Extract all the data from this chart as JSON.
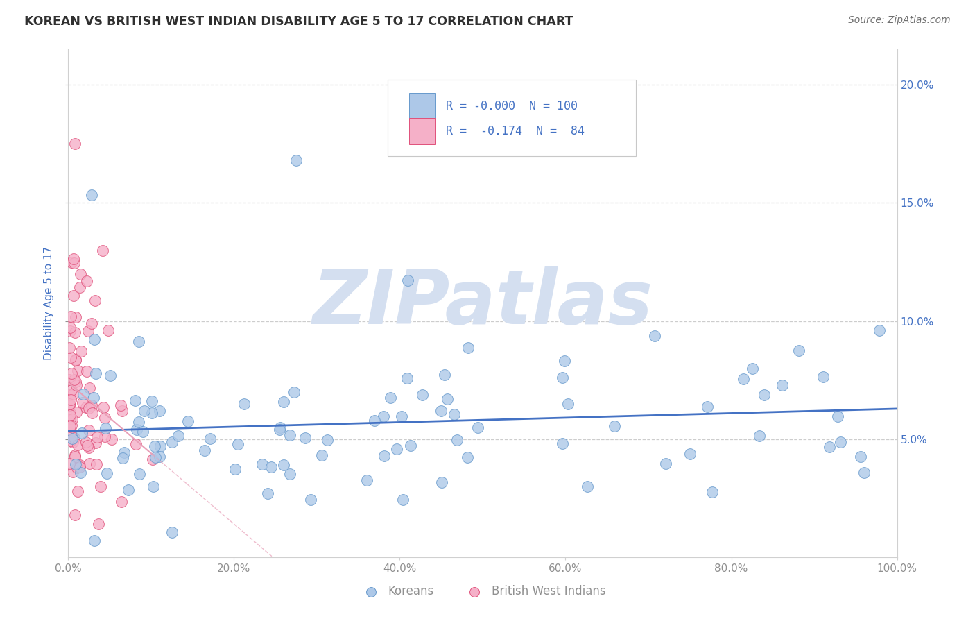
{
  "title": "KOREAN VS BRITISH WEST INDIAN DISABILITY AGE 5 TO 17 CORRELATION CHART",
  "source_text": "Source: ZipAtlas.com",
  "ylabel": "Disability Age 5 to 17",
  "xlim": [
    0.0,
    1.0
  ],
  "ylim": [
    0.0,
    0.215
  ],
  "yticks": [
    0.05,
    0.1,
    0.15,
    0.2
  ],
  "ytick_labels": [
    "5.0%",
    "10.0%",
    "15.0%",
    "20.0%"
  ],
  "xticks": [
    0.0,
    0.2,
    0.4,
    0.6,
    0.8,
    1.0
  ],
  "xtick_labels": [
    "0.0%",
    "20.0%",
    "40.0%",
    "60.0%",
    "80.0%",
    "100.0%"
  ],
  "korean_color": "#adc8e8",
  "korean_edge_color": "#6699cc",
  "bwi_color": "#f5b0c8",
  "bwi_edge_color": "#e0507a",
  "title_color": "#303030",
  "source_color": "#707070",
  "axis_label_color": "#4472c4",
  "tick_color_right": "#4472c4",
  "tick_color_bottom": "#909090",
  "legend_text_color": "#4472c4",
  "legend_r1": "R = -0.000  N = 100",
  "legend_r2": "R =  -0.174  N =  84",
  "regression_blue_color": "#4472c4",
  "regression_pink_color": "#e8a0b8",
  "watermark_color": "#d4dff0",
  "watermark_text": "ZIPatlas",
  "grid_color": "#c8c8c8",
  "background_color": "#ffffff",
  "korean_seed": 12345,
  "bwi_seed": 67890
}
